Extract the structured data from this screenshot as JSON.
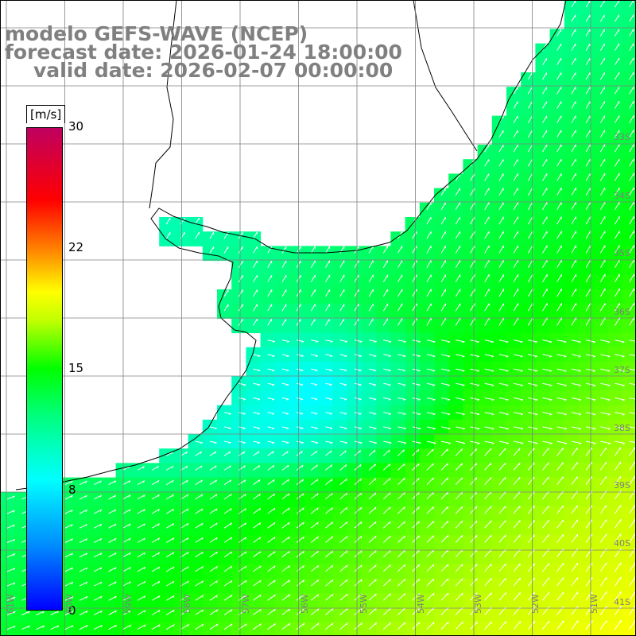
{
  "title": {
    "line1": "modelo GEFS-WAVE (NCEP)",
    "line2": "forecast date: 2026-01-24 18:00:00",
    "line3": "valid date: 2026-02-07 00:00:00"
  },
  "colorbar": {
    "units": "[m/s]",
    "ticks": [
      "30",
      "22",
      "15",
      "8",
      "0"
    ],
    "tick_values": [
      30,
      22,
      15,
      8,
      0
    ],
    "range": [
      0,
      30
    ],
    "colors": [
      "#0000ff",
      "#0088ff",
      "#00ffff",
      "#00ff00",
      "#ffff00",
      "#ff8000",
      "#ff0000",
      "#c00060"
    ]
  },
  "map": {
    "lat_labels": [
      "33S",
      "34S",
      "35S",
      "36S",
      "37S",
      "38S",
      "39S",
      "40S",
      "41S"
    ],
    "lon_labels": [
      "61W",
      "60W",
      "59W",
      "58W",
      "57W",
      "56W",
      "55W",
      "54W",
      "53W",
      "52W",
      "51W"
    ],
    "land_color": "#ffffff",
    "grid_color": "#808080",
    "coast_color": "#000000",
    "arrow_color": "#ffffff"
  }
}
